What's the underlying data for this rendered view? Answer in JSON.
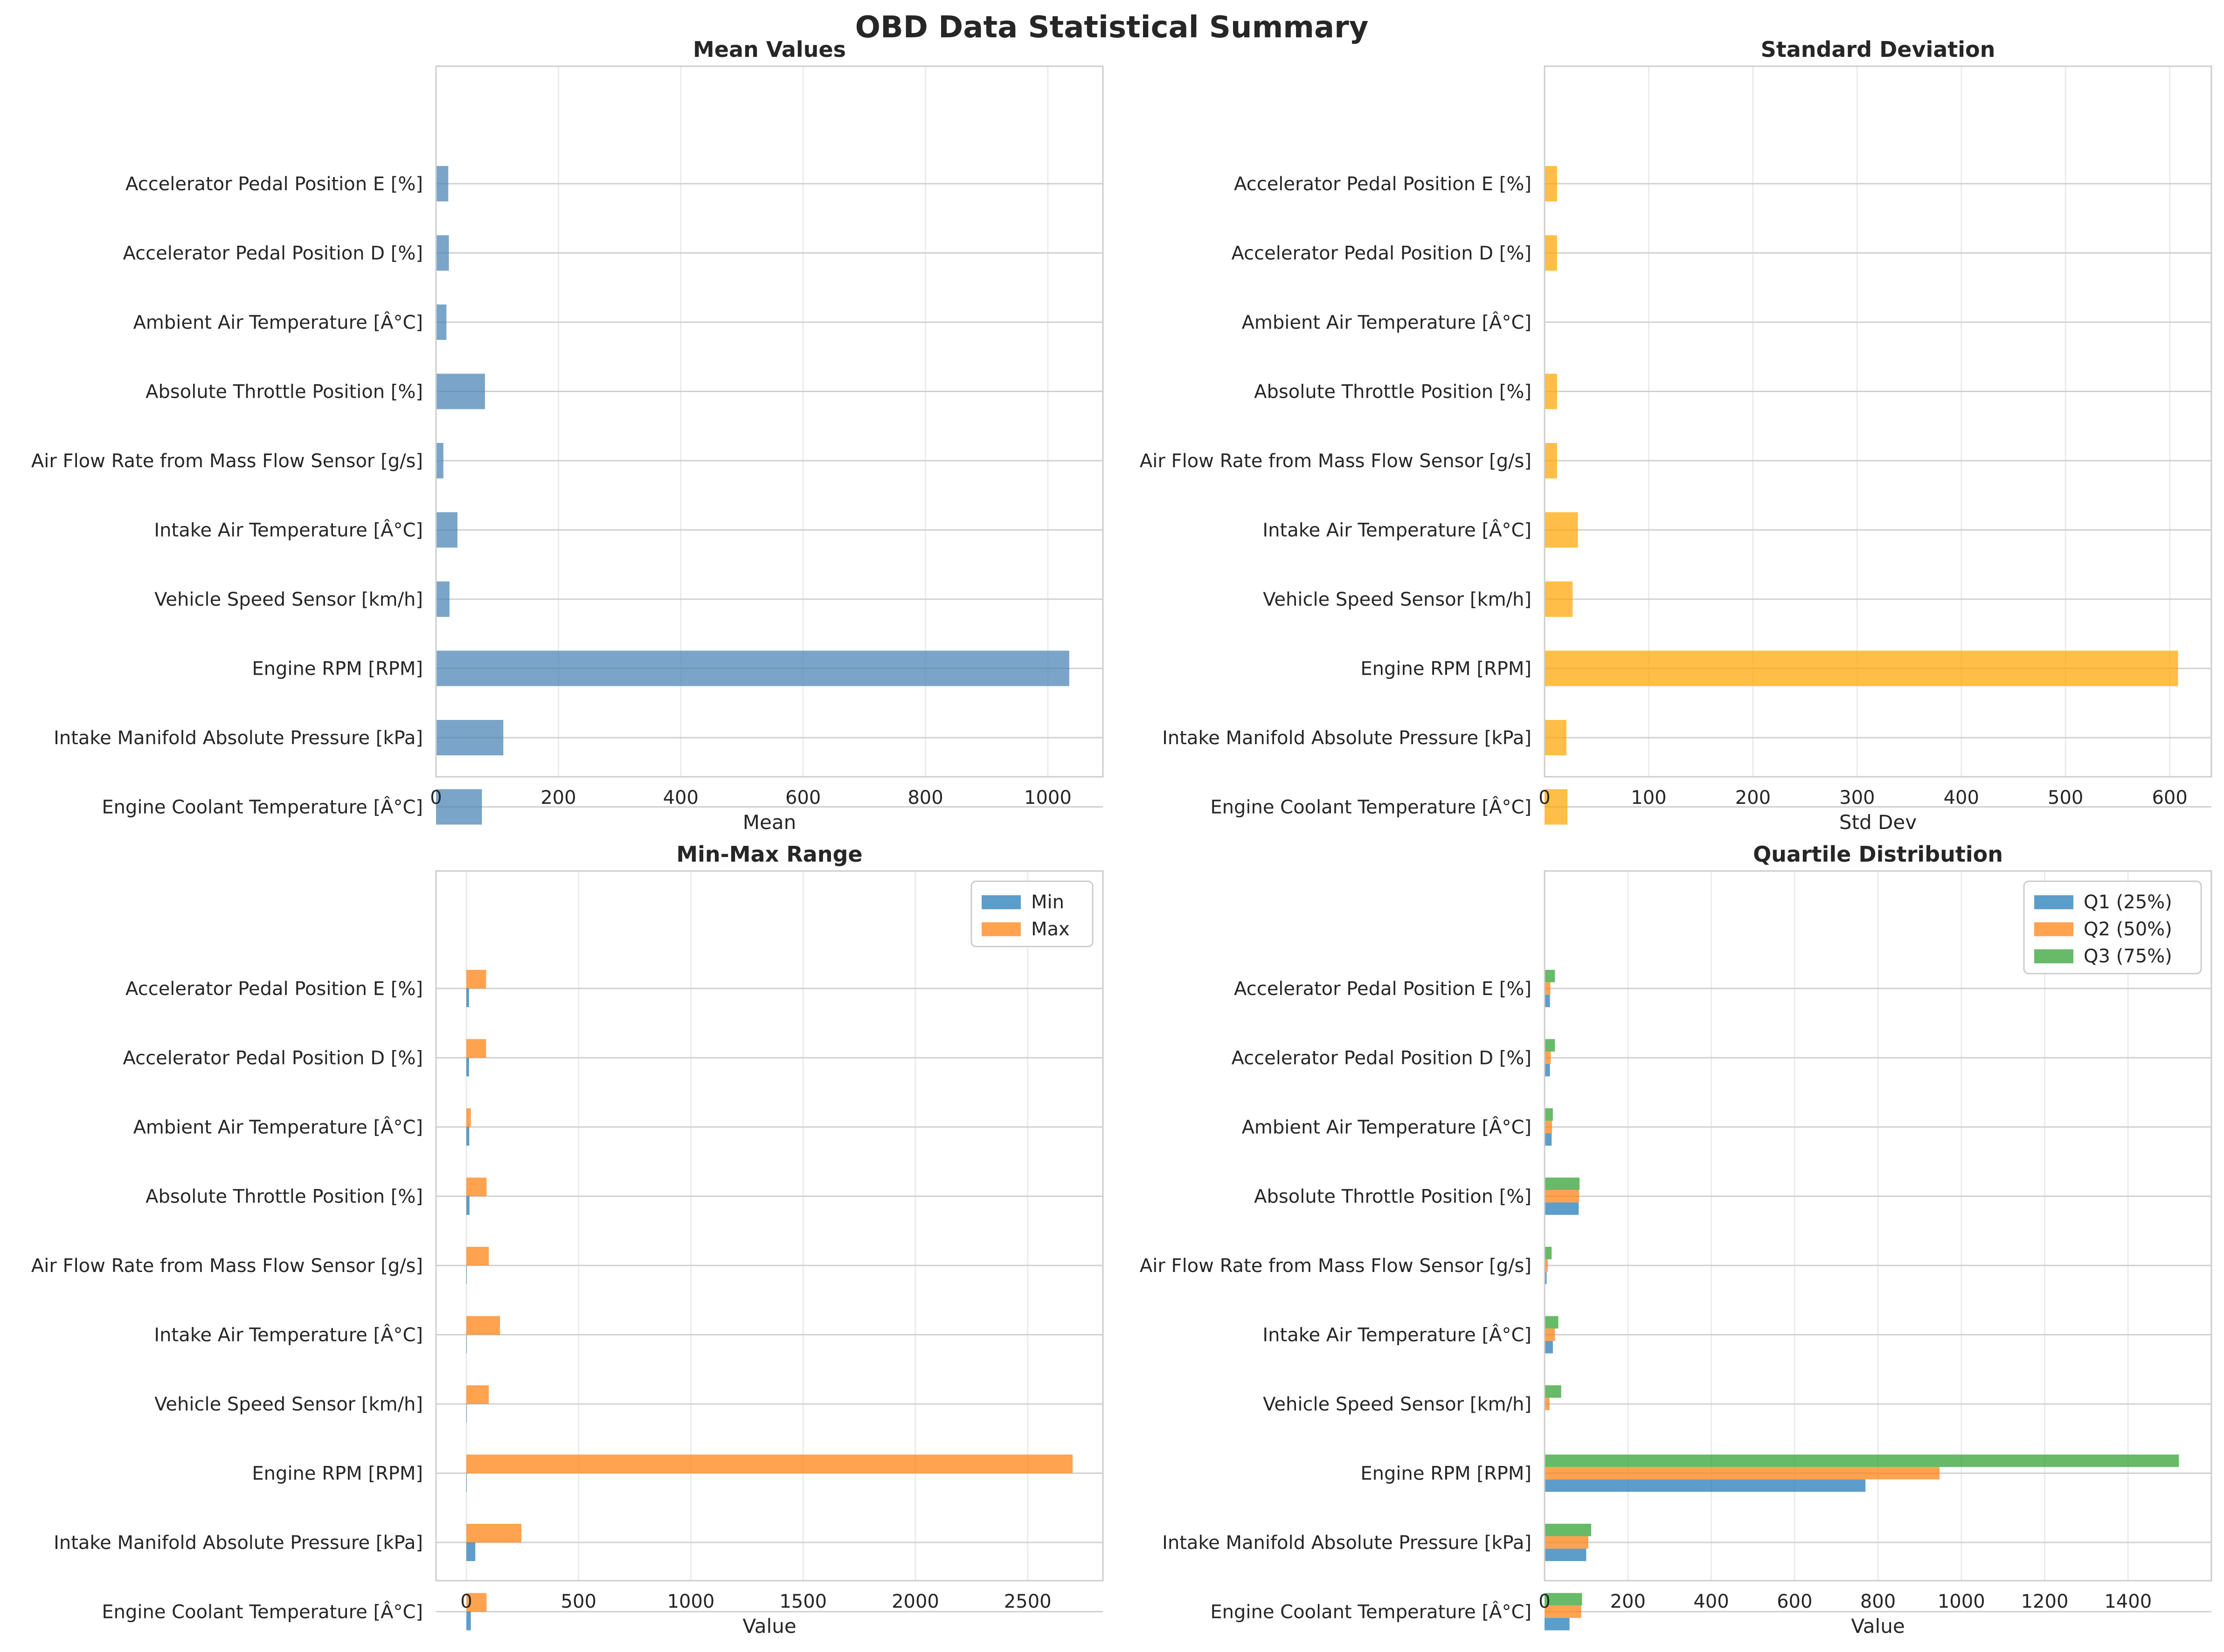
{
  "figure_title": "OBD Data Statistical Summary",
  "categories": [
    "Engine Coolant Temperature [Â°C]",
    "Intake Manifold Absolute Pressure [kPa]",
    "Engine RPM [RPM]",
    "Vehicle Speed Sensor [km/h]",
    "Intake Air Temperature [Â°C]",
    "Air Flow Rate from Mass Flow Sensor [g/s]",
    "Absolute Throttle Position [%]",
    "Ambient Air Temperature [Â°C]",
    "Accelerator Pedal Position D [%]",
    "Accelerator Pedal Position E [%]"
  ],
  "chart_data": [
    {
      "id": "mean",
      "type": "bar",
      "orientation": "horizontal",
      "title": "Mean Values",
      "xlabel": "Mean",
      "xlim": [
        0,
        1090
      ],
      "xticks": [
        0,
        200,
        400,
        600,
        800,
        1000
      ],
      "grid": true,
      "series": [
        {
          "color": "#4682b4",
          "values": [
            75,
            110,
            1035,
            22,
            35,
            12,
            80,
            17,
            21,
            20
          ]
        }
      ]
    },
    {
      "id": "std",
      "type": "bar",
      "orientation": "horizontal",
      "title": "Standard Deviation",
      "xlabel": "Std Dev",
      "xlim": [
        0,
        640
      ],
      "xticks": [
        0,
        100,
        200,
        300,
        400,
        500,
        600
      ],
      "grid": true,
      "series": [
        {
          "color": "#ffa500",
          "values": [
            22,
            21,
            608,
            27,
            32,
            12,
            12,
            0.5,
            12,
            12
          ]
        }
      ]
    },
    {
      "id": "minmax",
      "type": "bar",
      "orientation": "horizontal",
      "title": "Min-Max Range",
      "xlabel": "Value",
      "xlim": [
        -135,
        2835
      ],
      "xticks": [
        0,
        500,
        1000,
        1500,
        2000,
        2500
      ],
      "grid": true,
      "legend": "top-right",
      "series": [
        {
          "name": "Min",
          "color": "#1f77b4",
          "values": [
            20,
            40,
            0,
            0,
            0,
            0,
            14,
            13,
            12,
            12
          ]
        },
        {
          "name": "Max",
          "color": "#ff7f0e",
          "values": [
            90,
            245,
            2700,
            100,
            150,
            100,
            90,
            20,
            88,
            88
          ]
        }
      ]
    },
    {
      "id": "quartile",
      "type": "bar",
      "orientation": "horizontal",
      "title": "Quartile Distribution",
      "xlabel": "Value",
      "xlim": [
        0,
        1600
      ],
      "xticks": [
        0,
        200,
        400,
        600,
        800,
        1000,
        1200,
        1400
      ],
      "grid": true,
      "legend": "top-right",
      "series": [
        {
          "name": "Q1 (25%)",
          "color": "#1f77b4",
          "values": [
            60,
            100,
            770,
            0,
            20,
            5,
            82,
            17,
            13,
            13
          ]
        },
        {
          "name": "Q2 (50%)",
          "color": "#ff7f0e",
          "values": [
            88,
            105,
            948,
            12,
            25,
            8,
            83,
            18,
            15,
            14
          ]
        },
        {
          "name": "Q3 (75%)",
          "color": "#2ca02c",
          "values": [
            90,
            112,
            1522,
            40,
            33,
            17,
            84,
            20,
            25,
            25
          ]
        }
      ]
    }
  ]
}
